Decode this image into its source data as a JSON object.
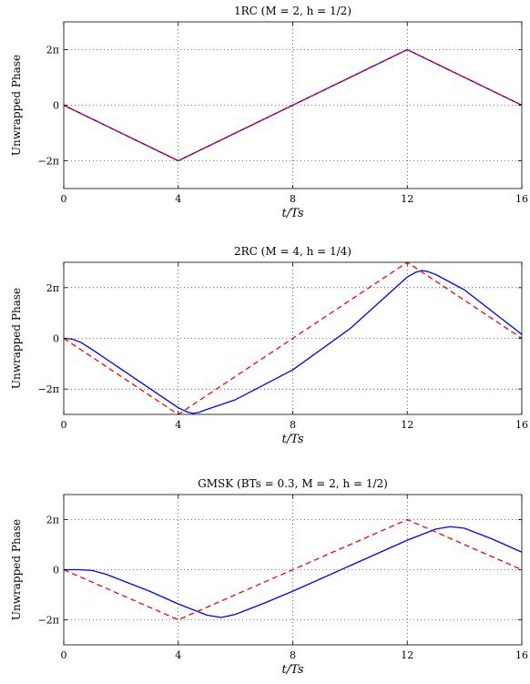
{
  "chart_data": [
    {
      "type": "line",
      "title": "1RC (M = 2, h = 1/2)",
      "xlabel": "t/Ts",
      "ylabel": "Unwrapped Phase",
      "xlim": [
        0,
        16
      ],
      "ylim": [
        -9.425,
        9.425
      ],
      "xticks": [
        0,
        4,
        8,
        12,
        16
      ],
      "xtick_labels": [
        "0",
        "4",
        "8",
        "12",
        "16"
      ],
      "yticks": [
        -6.283,
        0,
        6.283
      ],
      "ytick_labels": [
        "−2π",
        "0",
        "2π"
      ],
      "grid": true,
      "series": [
        {
          "style": "solid",
          "color": "#0000ff",
          "x": [
            0,
            0.5,
            1,
            1.5,
            2,
            2.5,
            3,
            3.5,
            4,
            4.5,
            5,
            5.5,
            6,
            6.5,
            7,
            7.5,
            8,
            8.5,
            9,
            9.5,
            10,
            10.5,
            11,
            11.5,
            12,
            12.5,
            13,
            13.5,
            14,
            14.5,
            15,
            15.5,
            16
          ],
          "y": [
            0,
            -0.785,
            -1.571,
            -2.356,
            -3.142,
            -3.927,
            -4.712,
            -5.498,
            -6.283,
            -5.498,
            -4.712,
            -3.927,
            -3.142,
            -2.356,
            -1.571,
            -0.785,
            0,
            0.785,
            1.571,
            2.356,
            3.142,
            3.927,
            4.712,
            5.498,
            6.283,
            5.498,
            4.712,
            3.927,
            3.142,
            2.356,
            1.571,
            0.785,
            0
          ]
        },
        {
          "style": "dashed",
          "color": "#ff0000",
          "x": [
            0,
            4,
            12,
            16
          ],
          "y": [
            0,
            -6.283,
            6.283,
            0
          ]
        }
      ]
    },
    {
      "type": "line",
      "title": "2RC (M = 4, h = 1/4)",
      "xlabel": "t/Ts",
      "ylabel": "Unwrapped Phase",
      "xlim": [
        0,
        16
      ],
      "ylim": [
        -9.425,
        9.425
      ],
      "xticks": [
        0,
        4,
        8,
        12,
        16
      ],
      "xtick_labels": [
        "0",
        "4",
        "8",
        "12",
        "16"
      ],
      "yticks": [
        -6.283,
        0,
        6.283
      ],
      "ytick_labels": [
        "−2π",
        "0",
        "2π"
      ],
      "grid": true,
      "series": [
        {
          "style": "solid",
          "color": "#0000ff",
          "x": [
            0,
            0.3,
            0.6,
            1,
            2,
            3,
            4,
            4.3,
            4.5,
            4.7,
            5,
            6,
            8,
            10,
            12,
            12.3,
            12.5,
            12.7,
            13,
            14,
            16
          ],
          "y": [
            0,
            -0.1,
            -0.5,
            -1.4,
            -3.8,
            -6.2,
            -8.6,
            -9.1,
            -9.3,
            -9.2,
            -8.8,
            -7.6,
            -3.9,
            1.2,
            7.6,
            8.2,
            8.4,
            8.3,
            7.9,
            6.0,
            0.5
          ]
        },
        {
          "style": "dashed",
          "color": "#ff0000",
          "x": [
            0,
            4,
            12,
            16
          ],
          "y": [
            0,
            -9.425,
            9.425,
            0
          ]
        }
      ]
    },
    {
      "type": "line",
      "title": "GMSK (BTs = 0.3, M = 2, h = 1/2)",
      "xlabel": "t/Ts",
      "ylabel": "Unwrapped Phase",
      "xlim": [
        0,
        16
      ],
      "ylim": [
        -9.425,
        9.425
      ],
      "xticks": [
        0,
        4,
        8,
        12,
        16
      ],
      "xtick_labels": [
        "0",
        "4",
        "8",
        "12",
        "16"
      ],
      "yticks": [
        -6.283,
        0,
        6.283
      ],
      "ytick_labels": [
        "−2π",
        "0",
        "2π"
      ],
      "grid": true,
      "series": [
        {
          "style": "solid",
          "color": "#0000ff",
          "x": [
            0,
            0.5,
            1,
            1.5,
            2,
            3,
            4,
            5,
            5.5,
            6,
            7,
            8,
            9,
            10,
            11,
            12,
            13,
            13.5,
            14,
            15,
            16
          ],
          "y": [
            0,
            0,
            -0.1,
            -0.6,
            -1.3,
            -2.7,
            -4.3,
            -5.7,
            -6.0,
            -5.6,
            -4.2,
            -2.7,
            -1.1,
            0.5,
            2.1,
            3.7,
            5.1,
            5.4,
            5.2,
            3.8,
            2.2
          ]
        },
        {
          "style": "dashed",
          "color": "#ff0000",
          "x": [
            0,
            4,
            12,
            16
          ],
          "y": [
            0,
            -6.283,
            6.283,
            0
          ]
        }
      ]
    }
  ]
}
